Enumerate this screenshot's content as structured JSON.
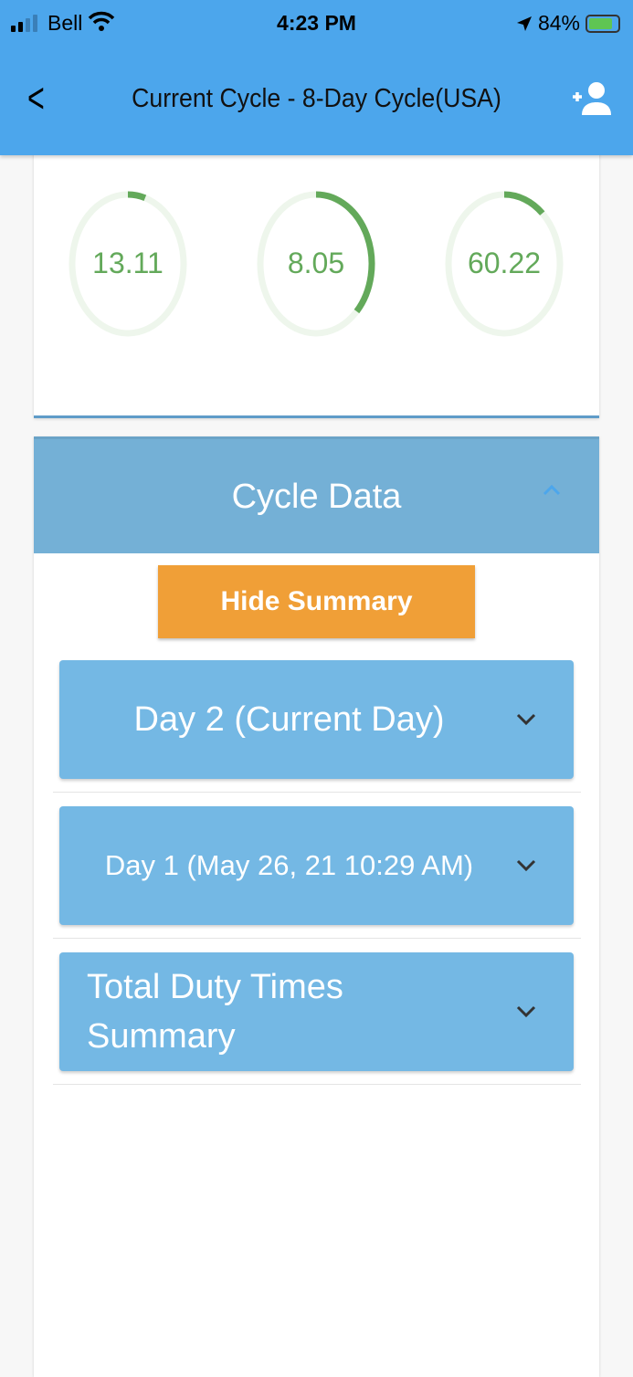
{
  "status_bar": {
    "carrier": "Bell",
    "time": "4:23 PM",
    "battery": "84%",
    "battery_level": 84
  },
  "header": {
    "title": "Current Cycle - 8-Day Cycle(USA)",
    "back_icon": "chevron-left-icon",
    "action_icon": "add-user-icon"
  },
  "gauges": [
    {
      "value": "13.11",
      "fraction": 0.05
    },
    {
      "value": "8.05",
      "fraction": 0.37
    },
    {
      "value": "60.22",
      "fraction": 0.12
    }
  ],
  "colors": {
    "accent": "#4ca6ec",
    "gauge": "#63a95a",
    "gauge_track": "#eef6ec",
    "button": "#f09f37",
    "accordion": "#74b8e4"
  },
  "cycle_data": {
    "title": "Cycle Data",
    "hide_summary": "Hide Summary",
    "sections": [
      {
        "label": "Day 2  (Current Day)"
      },
      {
        "label": "Day 1 (May 26, 21 10:29 AM)"
      },
      {
        "label": "Total Duty Times Summary"
      }
    ]
  }
}
